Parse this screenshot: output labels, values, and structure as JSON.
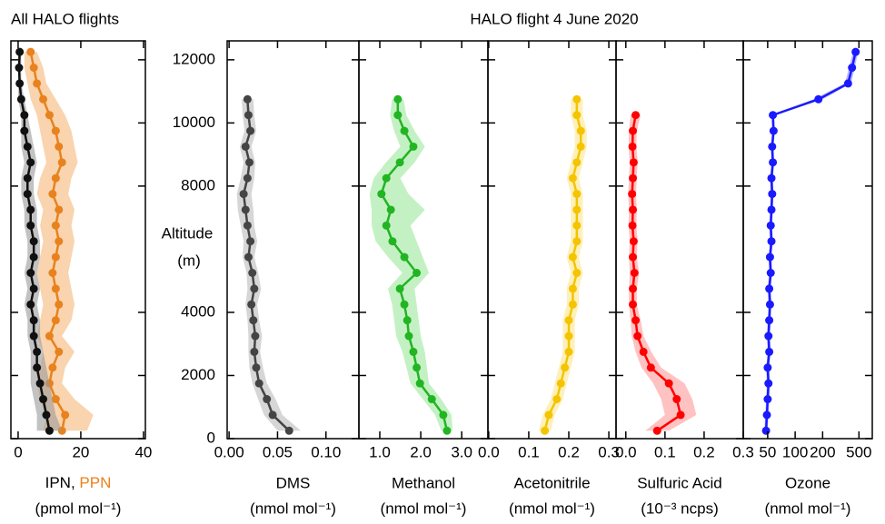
{
  "title": "HALO flight 4 June 2020",
  "y_axis": {
    "label": [
      "Altitude",
      "(m)"
    ],
    "ylim": [
      0,
      12600
    ],
    "yticks": [
      0,
      2000,
      4000,
      8000,
      10000,
      12000
    ]
  },
  "chart_data": [
    {
      "type": "profile",
      "title": "All HALO flights",
      "xlabel": [
        {
          "text": "IPN",
          "color": "#000000"
        },
        {
          "text": ", ",
          "color": "#000000"
        },
        {
          "text": "PPN",
          "color": "#e8821e"
        }
      ],
      "xunit": "(pmol mol⁻¹)",
      "xscale": "linear",
      "xlim": [
        -2.3,
        40.6
      ],
      "xticks": [
        0,
        20,
        40
      ],
      "y": [
        250,
        750,
        1250,
        1750,
        2250,
        2750,
        3250,
        3750,
        4250,
        4750,
        5250,
        5750,
        6250,
        6750,
        7250,
        7750,
        8250,
        8750,
        9250,
        9750,
        10250,
        10750,
        11250,
        11750,
        12250
      ],
      "series": [
        {
          "color": "#e8821e",
          "band_color": "#f5b878",
          "values": [
            14,
            15,
            12,
            10,
            11,
            13,
            10,
            12,
            13,
            12,
            11,
            12,
            13,
            12,
            13,
            11,
            12,
            14,
            13,
            12,
            10,
            8,
            6,
            5,
            4
          ],
          "lo": [
            8,
            9,
            7,
            6,
            7,
            8,
            6,
            7,
            8,
            7,
            6,
            7,
            8,
            7,
            8,
            6,
            7,
            9,
            8,
            7,
            6,
            4,
            3,
            2,
            2
          ],
          "hi": [
            22,
            24,
            18,
            14,
            15,
            18,
            14,
            17,
            18,
            17,
            16,
            17,
            18,
            17,
            18,
            16,
            17,
            19,
            18,
            17,
            15,
            12,
            9,
            8,
            6
          ]
        },
        {
          "color": "#111111",
          "band_color": "#999999",
          "values": [
            10,
            9,
            8,
            7,
            6,
            6,
            5,
            5,
            4,
            5,
            4,
            5,
            5,
            4,
            4,
            3,
            3,
            4,
            3,
            2,
            2,
            1,
            0.5,
            0.3,
            0.5
          ],
          "lo": [
            6,
            6,
            5,
            4,
            4,
            4,
            3,
            3,
            2,
            3,
            2,
            3,
            3,
            2,
            2,
            1,
            1,
            2,
            1,
            1,
            1,
            0,
            0,
            0,
            0
          ],
          "hi": [
            14,
            12,
            11,
            10,
            9,
            8,
            7,
            7,
            6,
            7,
            6,
            7,
            7,
            6,
            6,
            5,
            5,
            6,
            5,
            4,
            3,
            2,
            1,
            1,
            1
          ]
        }
      ]
    },
    {
      "type": "profile",
      "xlabel": "DMS",
      "xunit": "(nmol mol⁻¹)",
      "xscale": "linear",
      "xlim": [
        -0.002,
        0.134
      ],
      "xticks": [
        {
          "value": 0,
          "label": "0.00"
        },
        {
          "value": 0.05,
          "label": "0.05"
        },
        {
          "value": 0.1,
          "label": "0.10"
        }
      ],
      "y": [
        250,
        750,
        1250,
        1750,
        2250,
        2750,
        3250,
        3750,
        4250,
        4750,
        5250,
        5750,
        6250,
        6750,
        7250,
        7750,
        8250,
        8750,
        9250,
        9750,
        10250,
        10750
      ],
      "series": [
        {
          "color": "#444444",
          "band_color": "#bbbbbb",
          "values": [
            0.062,
            0.045,
            0.039,
            0.031,
            0.028,
            0.026,
            0.027,
            0.025,
            0.023,
            0.026,
            0.024,
            0.02,
            0.022,
            0.019,
            0.017,
            0.015,
            0.019,
            0.021,
            0.017,
            0.022,
            0.02,
            0.019
          ],
          "lo": [
            0.05,
            0.036,
            0.03,
            0.024,
            0.021,
            0.02,
            0.02,
            0.019,
            0.017,
            0.019,
            0.018,
            0.014,
            0.015,
            0.012,
            0.009,
            0.008,
            0.012,
            0.015,
            0.011,
            0.016,
            0.014,
            0.013
          ],
          "hi": [
            0.074,
            0.055,
            0.048,
            0.039,
            0.035,
            0.032,
            0.034,
            0.031,
            0.029,
            0.033,
            0.03,
            0.026,
            0.029,
            0.026,
            0.025,
            0.023,
            0.026,
            0.027,
            0.023,
            0.028,
            0.026,
            0.025
          ]
        }
      ]
    },
    {
      "type": "profile",
      "xlabel": "Methanol",
      "xunit": "(nmol mol⁻¹)",
      "xscale": "linear",
      "xlim": [
        0.49,
        3.64
      ],
      "xticks": [
        {
          "value": 1,
          "label": "1.0"
        },
        {
          "value": 2,
          "label": "2.0"
        },
        {
          "value": 3,
          "label": "3.0"
        }
      ],
      "y": [
        250,
        750,
        1250,
        1750,
        2250,
        2750,
        3250,
        3750,
        4250,
        4750,
        5250,
        5750,
        6250,
        6750,
        7250,
        7750,
        8250,
        8750,
        9250,
        9750,
        10250,
        10750
      ],
      "series": [
        {
          "color": "#22b522",
          "band_color": "#9de89d",
          "values": [
            2.64,
            2.55,
            2.27,
            1.98,
            1.9,
            1.82,
            1.71,
            1.67,
            1.6,
            1.49,
            1.9,
            1.6,
            1.31,
            1.16,
            1.27,
            1.04,
            1.16,
            1.49,
            1.82,
            1.6,
            1.44,
            1.44
          ],
          "lo": [
            2.5,
            2.35,
            2.05,
            1.75,
            1.65,
            1.55,
            1.4,
            1.35,
            1.3,
            1.2,
            1.55,
            1.2,
            0.9,
            0.8,
            0.8,
            0.75,
            0.85,
            1.15,
            1.5,
            1.35,
            1.25,
            1.3
          ],
          "hi": [
            2.78,
            2.75,
            2.5,
            2.2,
            2.15,
            2.1,
            2.0,
            1.95,
            1.9,
            1.85,
            2.2,
            2.05,
            1.9,
            1.75,
            2.1,
            1.7,
            1.5,
            1.85,
            2.1,
            1.85,
            1.65,
            1.58
          ]
        }
      ]
    },
    {
      "type": "profile",
      "xlabel": "Acetonitrile",
      "xunit": "(nmol mol⁻¹)",
      "xscale": "linear",
      "xlim": [
        -0.002,
        0.318
      ],
      "xticks": [
        {
          "value": 0,
          "label": "0.0"
        },
        0.1,
        0.2,
        0.3
      ],
      "y": [
        250,
        750,
        1250,
        1750,
        2250,
        2750,
        3250,
        3750,
        4250,
        4750,
        5250,
        5750,
        6250,
        6750,
        7250,
        7750,
        8250,
        8750,
        9250,
        9750,
        10250,
        10750
      ],
      "series": [
        {
          "color": "#f5c400",
          "band_color": "#fde68a",
          "values": [
            0.14,
            0.15,
            0.17,
            0.18,
            0.19,
            0.2,
            0.2,
            0.2,
            0.21,
            0.21,
            0.22,
            0.21,
            0.22,
            0.22,
            0.22,
            0.22,
            0.21,
            0.22,
            0.23,
            0.23,
            0.22,
            0.22
          ],
          "lo": [
            0.125,
            0.135,
            0.155,
            0.165,
            0.175,
            0.185,
            0.185,
            0.185,
            0.195,
            0.195,
            0.205,
            0.195,
            0.205,
            0.205,
            0.205,
            0.205,
            0.195,
            0.205,
            0.215,
            0.215,
            0.205,
            0.205
          ],
          "hi": [
            0.155,
            0.165,
            0.185,
            0.195,
            0.205,
            0.215,
            0.215,
            0.215,
            0.225,
            0.225,
            0.235,
            0.225,
            0.235,
            0.235,
            0.235,
            0.235,
            0.225,
            0.235,
            0.245,
            0.245,
            0.235,
            0.235
          ]
        }
      ]
    },
    {
      "type": "profile",
      "xlabel": "Sulfuric Acid",
      "xunit": "(10⁻³ ncps)",
      "xscale": "linear",
      "xlim": [
        -0.025,
        0.3
      ],
      "xticks": [
        {
          "value": 0,
          "label": "0.0"
        },
        0.1,
        0.2,
        0.3
      ],
      "y": [
        250,
        750,
        1250,
        1750,
        2250,
        2750,
        3250,
        3750,
        4250,
        4750,
        5250,
        5750,
        6250,
        6750,
        7250,
        7750,
        8250,
        8750,
        9250,
        9750,
        10250
      ],
      "series": [
        {
          "color": "#ff0000",
          "band_color": "#ff9999",
          "values": [
            0.08,
            0.14,
            0.13,
            0.11,
            0.064,
            0.045,
            0.03,
            0.025,
            0.018,
            0.018,
            0.022,
            0.018,
            0.02,
            0.017,
            0.018,
            0.016,
            0.018,
            0.02,
            0.017,
            0.018,
            0.025
          ],
          "lo": [
            0.05,
            0.1,
            0.09,
            0.07,
            0.04,
            0.025,
            0.015,
            0.012,
            0.008,
            0.008,
            0.01,
            0.008,
            0.01,
            0.007,
            0.008,
            0.006,
            0.008,
            0.01,
            0.007,
            0.008,
            0.012
          ],
          "hi": [
            0.11,
            0.18,
            0.17,
            0.15,
            0.09,
            0.065,
            0.045,
            0.038,
            0.028,
            0.028,
            0.034,
            0.028,
            0.03,
            0.027,
            0.028,
            0.026,
            0.028,
            0.03,
            0.027,
            0.028,
            0.038
          ]
        }
      ]
    },
    {
      "type": "profile",
      "xlabel": "Ozone",
      "xunit": "(nmol mol⁻¹)",
      "xscale": "log",
      "xlim": [
        27,
        700
      ],
      "xticks": [
        50,
        100,
        200,
        500
      ],
      "y": [
        250,
        750,
        1250,
        1750,
        2250,
        2750,
        3250,
        3750,
        4250,
        4750,
        5250,
        5750,
        6250,
        6750,
        7250,
        7750,
        8250,
        8750,
        9250,
        9750,
        10250,
        10750,
        11250,
        11750,
        12250
      ],
      "series": [
        {
          "color": "#1a1aff",
          "band_color": "#8888ff",
          "values": [
            48,
            49,
            50,
            51,
            50,
            52,
            51,
            52,
            53,
            52,
            54,
            53,
            55,
            54,
            55,
            56,
            55,
            57,
            56,
            58,
            57,
            180,
            380,
            420,
            460
          ],
          "lo": [
            46,
            47,
            48,
            49,
            48,
            50,
            49,
            50,
            51,
            50,
            52,
            51,
            53,
            52,
            53,
            54,
            53,
            55,
            54,
            56,
            55,
            160,
            350,
            390,
            430
          ],
          "hi": [
            50,
            51,
            52,
            53,
            52,
            54,
            53,
            54,
            55,
            54,
            56,
            55,
            57,
            56,
            57,
            58,
            57,
            59,
            58,
            60,
            59,
            200,
            410,
            450,
            490
          ]
        }
      ]
    }
  ]
}
